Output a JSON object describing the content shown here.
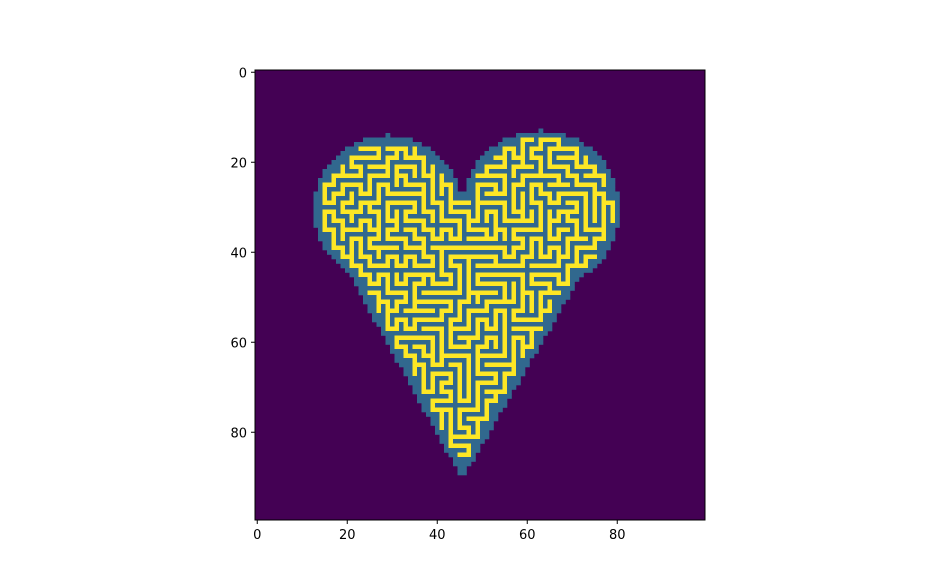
{
  "chart_data": {
    "type": "heatmap",
    "title": "",
    "xlabel": "",
    "ylabel": "",
    "grid_size": [
      100,
      100
    ],
    "xlim": [
      -0.5,
      99.5
    ],
    "ylim": [
      99.5,
      -0.5
    ],
    "x_ticks": [
      0,
      20,
      40,
      60,
      80
    ],
    "y_ticks": [
      0,
      20,
      40,
      60,
      80
    ],
    "x_tick_labels": [
      "0",
      "20",
      "40",
      "60",
      "80"
    ],
    "y_tick_labels": [
      "0",
      "20",
      "40",
      "60",
      "80"
    ],
    "colormap": "viridis",
    "value_levels": [
      0,
      1,
      2
    ],
    "level_colors": {
      "0": "#440154",
      "1": "#31688e",
      "2": "#fde725"
    },
    "legend": "none",
    "grid": false,
    "description_levels": {
      "background": 0,
      "heart_interior": 1,
      "maze_paths": 2
    },
    "shape": "heart",
    "heart_extent": {
      "x_min": 13,
      "x_max": 81,
      "y_min": 15,
      "y_max": 91,
      "notch_x": 46,
      "notch_y": 26
    }
  }
}
